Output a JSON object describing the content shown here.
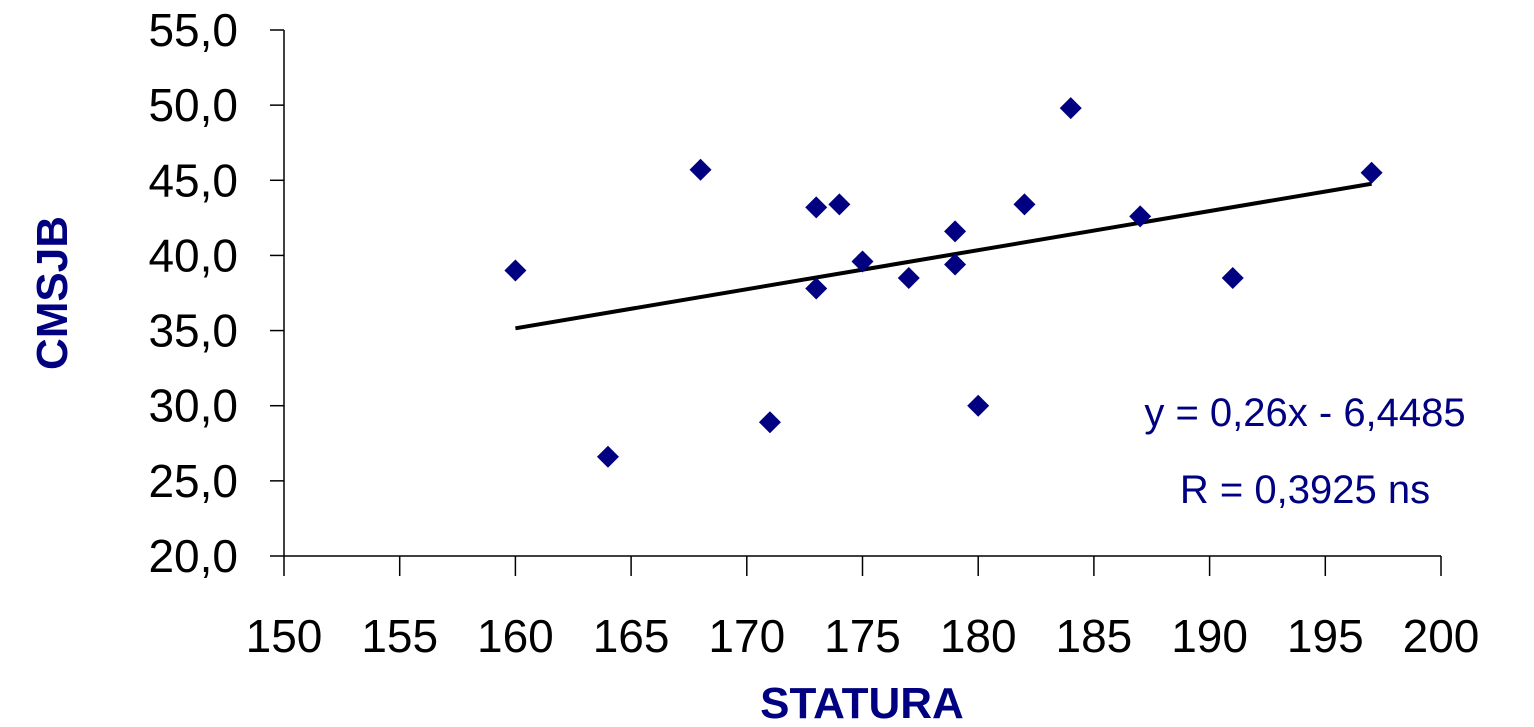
{
  "chart_data": {
    "type": "scatter",
    "title": "",
    "xlabel": "STATURA",
    "ylabel": "CMSJB",
    "xlim": [
      150,
      200
    ],
    "ylim": [
      20,
      55
    ],
    "x_ticks": [
      "150",
      "155",
      "160",
      "165",
      "170",
      "175",
      "180",
      "185",
      "190",
      "195",
      "200"
    ],
    "y_ticks": [
      "55,0",
      "50,0",
      "45,0",
      "40,0",
      "35,0",
      "30,0",
      "25,0",
      "20,0"
    ],
    "grid": false,
    "legend": "none",
    "point_color": "#000080",
    "trend_color": "#000000",
    "points": [
      {
        "x": 160,
        "y": 39.0
      },
      {
        "x": 164,
        "y": 26.6
      },
      {
        "x": 168,
        "y": 45.7
      },
      {
        "x": 171,
        "y": 28.9
      },
      {
        "x": 173,
        "y": 43.2
      },
      {
        "x": 173,
        "y": 37.8
      },
      {
        "x": 174,
        "y": 43.4
      },
      {
        "x": 175,
        "y": 39.6
      },
      {
        "x": 177,
        "y": 38.5
      },
      {
        "x": 179,
        "y": 41.6
      },
      {
        "x": 179,
        "y": 39.4
      },
      {
        "x": 180,
        "y": 30.0
      },
      {
        "x": 182,
        "y": 43.4
      },
      {
        "x": 184,
        "y": 49.8
      },
      {
        "x": 187,
        "y": 42.6
      },
      {
        "x": 191,
        "y": 38.5
      },
      {
        "x": 197,
        "y": 45.5
      }
    ],
    "trendline": {
      "x_start": 160,
      "x_end": 197,
      "slope": 0.26,
      "intercept": -6.4485
    },
    "annotations": {
      "equation": "y = 0,26x - 6,4485",
      "r_value": "R = 0,3925 ns"
    }
  }
}
